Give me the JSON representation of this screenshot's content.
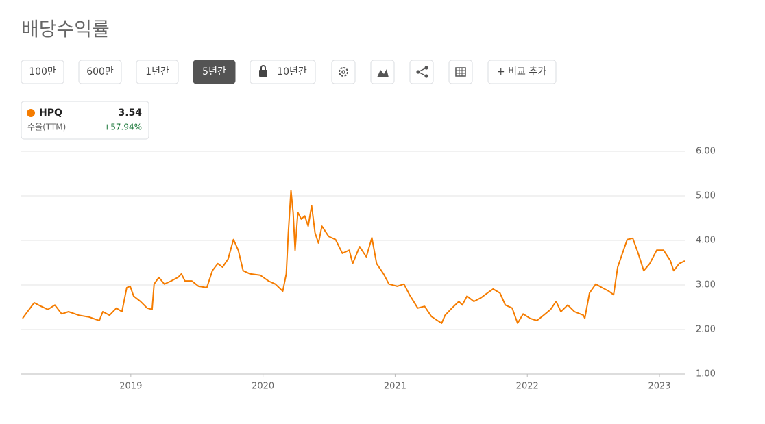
{
  "title": "배당수익률",
  "buttons": [
    "100만",
    "600만",
    "1년간",
    "5년간",
    "10년간",
    "+ 비교 추가"
  ],
  "legend": {
    "value": 3.54,
    "label": "수율(TTM)",
    "change": "+57.94%"
  },
  "chart_data": {
    "type": "line",
    "xlim": [
      2018.171,
      2023.197
    ],
    "xticks": [
      2019,
      2020,
      2021,
      2022,
      2023
    ],
    "ylim": [
      1,
      6
    ],
    "yticks": [
      {
        "value": 1,
        "label": "1.00"
      },
      {
        "value": 2,
        "label": "2.00"
      },
      {
        "value": 3,
        "label": "3.00"
      },
      {
        "value": 4,
        "label": "4.00"
      },
      {
        "value": 5,
        "label": "5.00"
      },
      {
        "value": 6,
        "label": "6.00"
      }
    ],
    "grid": true,
    "series": [
      {
        "name": "HPQ",
        "color": "#f57c00",
        "x": [
          2018.181,
          2018.218,
          2018.269,
          2018.321,
          2018.373,
          2018.425,
          2018.477,
          2018.529,
          2018.606,
          2018.684,
          2018.762,
          2018.788,
          2018.839,
          2018.891,
          2018.933,
          2018.969,
          2018.995,
          2019.021,
          2019.073,
          2019.124,
          2019.161,
          2019.176,
          2019.212,
          2019.254,
          2019.306,
          2019.357,
          2019.383,
          2019.409,
          2019.461,
          2019.513,
          2019.575,
          2019.617,
          2019.658,
          2019.694,
          2019.736,
          2019.777,
          2019.813,
          2019.85,
          2019.902,
          2019.979,
          2020.041,
          2020.093,
          2020.15,
          2020.176,
          2020.192,
          2020.212,
          2020.228,
          2020.243,
          2020.264,
          2020.29,
          2020.316,
          2020.342,
          2020.368,
          2020.394,
          2020.42,
          2020.446,
          2020.497,
          2020.549,
          2020.601,
          2020.653,
          2020.679,
          2020.731,
          2020.782,
          2020.824,
          2020.86,
          2020.912,
          2020.953,
          2021.016,
          2021.067,
          2021.109,
          2021.171,
          2021.223,
          2021.275,
          2021.352,
          2021.378,
          2021.43,
          2021.482,
          2021.508,
          2021.544,
          2021.596,
          2021.648,
          2021.699,
          2021.741,
          2021.793,
          2021.834,
          2021.886,
          2021.927,
          2021.969,
          2022.021,
          2022.073,
          2022.124,
          2022.176,
          2022.218,
          2022.254,
          2022.306,
          2022.357,
          2022.425,
          2022.435,
          2022.471,
          2022.518,
          2022.565,
          2022.617,
          2022.653,
          2022.684,
          2022.72,
          2022.756,
          2022.798,
          2022.839,
          2022.881,
          2022.927,
          2022.979,
          2023.031,
          2023.082,
          2023.108,
          2023.15,
          2023.192
        ],
        "values": [
          2.25,
          2.4,
          2.6,
          2.52,
          2.45,
          2.55,
          2.35,
          2.4,
          2.32,
          2.28,
          2.2,
          2.4,
          2.32,
          2.48,
          2.4,
          2.94,
          2.97,
          2.75,
          2.63,
          2.48,
          2.45,
          3.02,
          3.17,
          3.02,
          3.09,
          3.17,
          3.25,
          3.09,
          3.09,
          2.97,
          2.94,
          3.32,
          3.48,
          3.4,
          3.58,
          4.02,
          3.78,
          3.32,
          3.25,
          3.22,
          3.09,
          3.02,
          2.86,
          3.25,
          4.17,
          5.12,
          4.63,
          3.78,
          4.63,
          4.48,
          4.55,
          4.32,
          4.78,
          4.17,
          3.94,
          4.32,
          4.09,
          4.02,
          3.71,
          3.78,
          3.48,
          3.86,
          3.63,
          4.06,
          3.48,
          3.25,
          3.02,
          2.97,
          3.02,
          2.78,
          2.48,
          2.52,
          2.29,
          2.14,
          2.32,
          2.48,
          2.63,
          2.55,
          2.75,
          2.63,
          2.71,
          2.82,
          2.91,
          2.82,
          2.55,
          2.48,
          2.14,
          2.35,
          2.25,
          2.2,
          2.32,
          2.45,
          2.63,
          2.4,
          2.55,
          2.4,
          2.32,
          2.25,
          2.82,
          3.02,
          2.94,
          2.86,
          2.78,
          3.4,
          3.71,
          4.02,
          4.05,
          3.71,
          3.32,
          3.48,
          3.78,
          3.78,
          3.55,
          3.32,
          3.48,
          3.54
        ]
      }
    ]
  }
}
